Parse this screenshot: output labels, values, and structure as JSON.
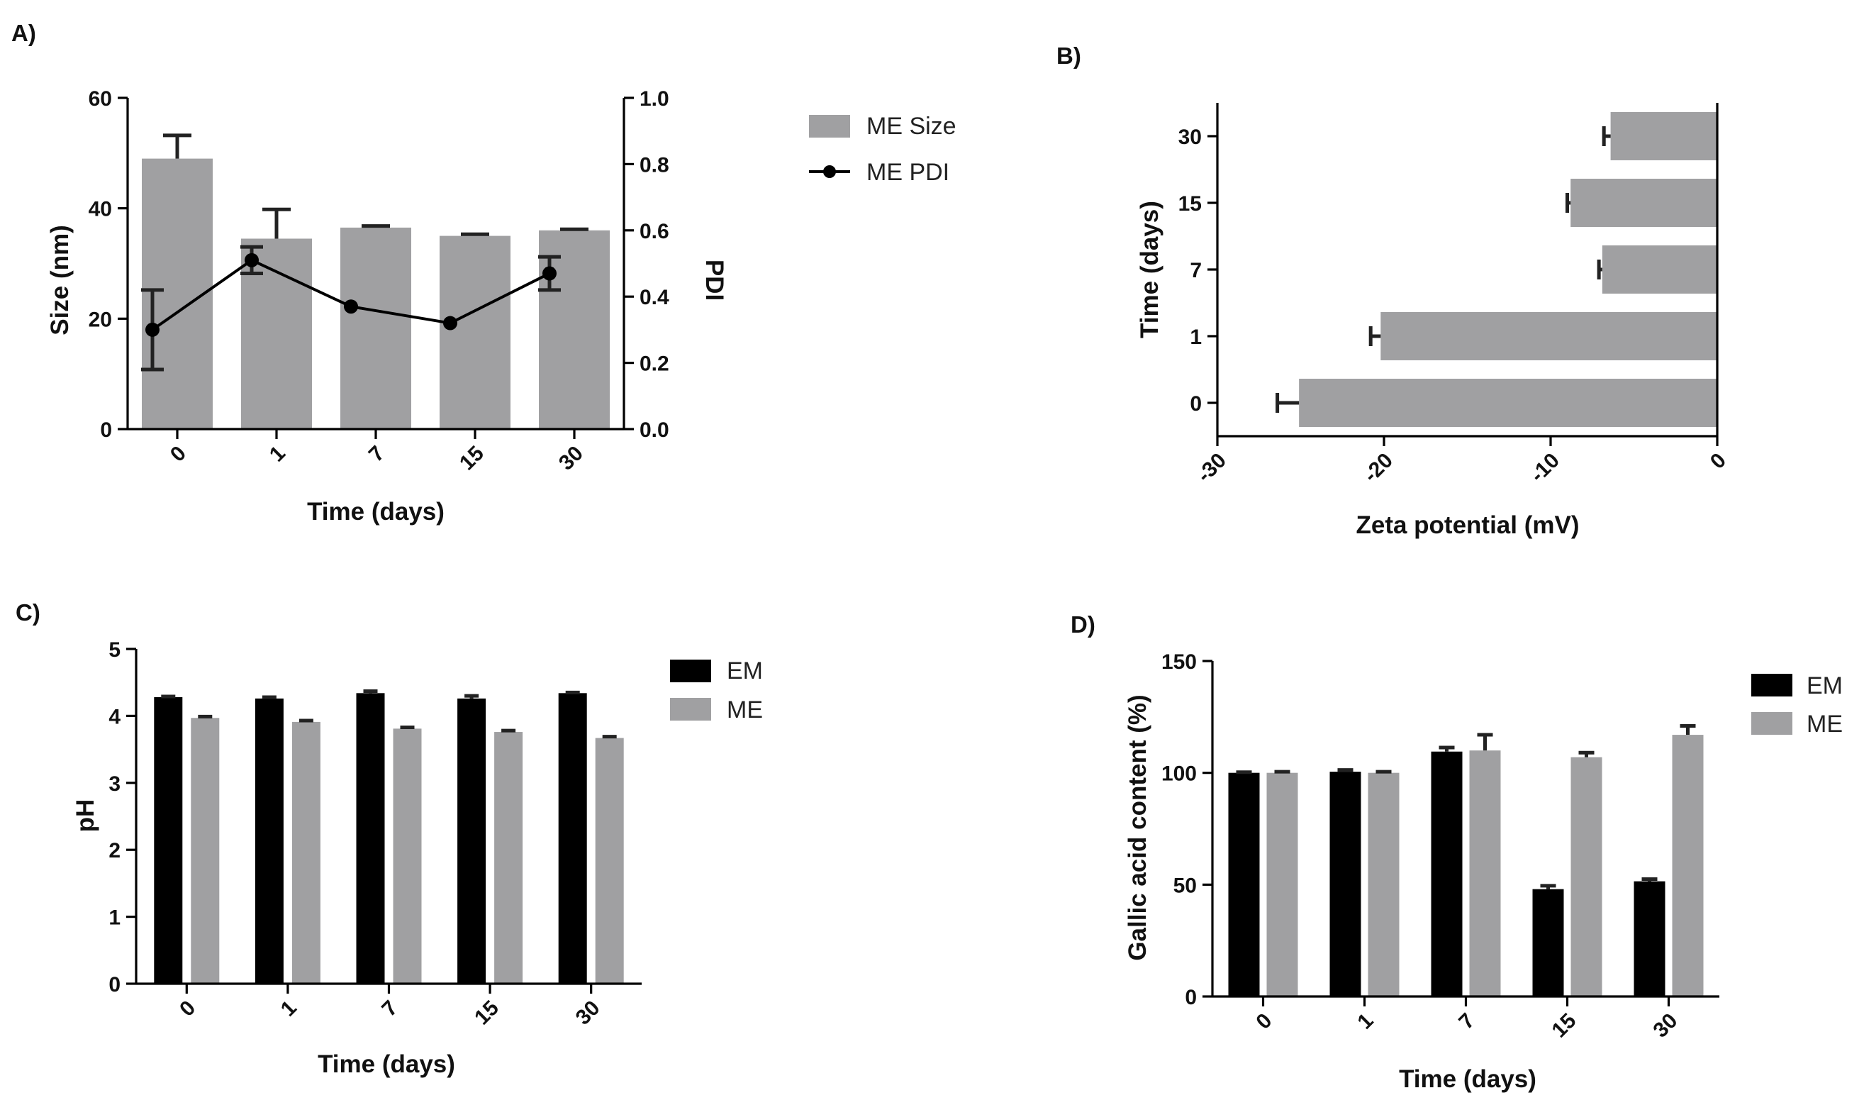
{
  "chart_data": [
    {
      "panel": "A)",
      "type": "bar",
      "categories": [
        "0",
        "1",
        "7",
        "15",
        "30"
      ],
      "xlabel": "Time (days)",
      "ylabel": "Size (nm)",
      "ylim": [
        0,
        60
      ],
      "yticks": [
        "0",
        "20",
        "40",
        "60"
      ],
      "y2label": "PDI",
      "y2lim": [
        0,
        1.0
      ],
      "y2ticks": [
        "0.0",
        "0.2",
        "0.4",
        "0.6",
        "0.8",
        "1.0"
      ],
      "series": [
        {
          "name": "ME Size",
          "kind": "bar",
          "axis": "left",
          "color": "#a0a0a2",
          "values": [
            49,
            34.5,
            36.5,
            35,
            36
          ],
          "errors": [
            4.2,
            5.3,
            0.3,
            0.3,
            0.2
          ]
        },
        {
          "name": "ME PDI",
          "kind": "line",
          "axis": "right",
          "color": "#000000",
          "values": [
            0.3,
            0.51,
            0.37,
            0.32,
            0.47
          ],
          "errors": [
            0.12,
            0.04,
            0.0,
            0.0,
            0.05
          ]
        }
      ],
      "legend": "right"
    },
    {
      "panel": "B)",
      "type": "bar",
      "orientation": "horizontal",
      "categories": [
        "0",
        "1",
        "7",
        "15",
        "30"
      ],
      "xlabel": "Zeta potential (mV)",
      "ylabel": "Time (days)",
      "xlim": [
        -30,
        0
      ],
      "xticks": [
        "-30",
        "-20",
        "-10",
        "0"
      ],
      "series": [
        {
          "name": "",
          "color": "#a0a0a2",
          "values": [
            -25.1,
            -20.2,
            -6.9,
            -8.8,
            -6.4
          ],
          "errors": [
            1.3,
            0.6,
            0.2,
            0.2,
            0.4
          ]
        }
      ]
    },
    {
      "panel": "C)",
      "type": "bar",
      "categories": [
        "0",
        "1",
        "7",
        "15",
        "30"
      ],
      "xlabel": "Time (days)",
      "ylabel": "pH",
      "ylim": [
        0,
        5
      ],
      "yticks": [
        "0",
        "1",
        "2",
        "3",
        "4",
        "5"
      ],
      "series": [
        {
          "name": "EM",
          "color": "#000000",
          "values": [
            4.28,
            4.26,
            4.34,
            4.26,
            4.34
          ],
          "errors": [
            0.01,
            0.02,
            0.03,
            0.04,
            0.01
          ]
        },
        {
          "name": "ME",
          "color": "#a0a0a2",
          "values": [
            3.97,
            3.91,
            3.81,
            3.76,
            3.67
          ],
          "errors": [
            0.02,
            0.02,
            0.02,
            0.02,
            0.02
          ]
        }
      ],
      "legend": "right"
    },
    {
      "panel": "D)",
      "type": "bar",
      "categories": [
        "0",
        "1",
        "7",
        "15",
        "30"
      ],
      "xlabel": "Time (days)",
      "ylabel": "Gallic acid content (%)",
      "ylim": [
        0,
        150
      ],
      "yticks": [
        "0",
        "50",
        "100",
        "150"
      ],
      "series": [
        {
          "name": "EM",
          "color": "#000000",
          "values": [
            100,
            100.5,
            109.5,
            48,
            51.5
          ],
          "errors": [
            0.3,
            0.8,
            1.8,
            1.5,
            1.0
          ]
        },
        {
          "name": "ME",
          "color": "#a0a0a2",
          "values": [
            100,
            100,
            110,
            107,
            117
          ],
          "errors": [
            0.5,
            0.5,
            7.0,
            2.0,
            4.0
          ]
        }
      ],
      "legend": "right"
    }
  ]
}
